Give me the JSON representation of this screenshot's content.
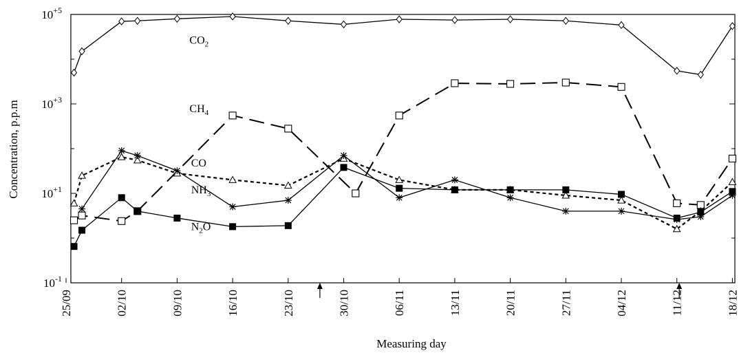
{
  "chart_data": {
    "type": "line",
    "title": "",
    "xlabel": "Measuring day",
    "ylabel": "Concentration, p.p.m",
    "yscale": "log",
    "ylim": [
      0.1,
      100000
    ],
    "ytick_labels": [
      {
        "value": 0.1,
        "base": "10",
        "exp": "-1"
      },
      {
        "value": 10,
        "base": "10",
        "exp": "+1"
      },
      {
        "value": 1000,
        "base": "10",
        "exp": "+3"
      },
      {
        "value": 100000,
        "base": "10",
        "exp": "+5"
      }
    ],
    "xtick_labels": [
      "25/09",
      "02/10",
      "09/10",
      "16/10",
      "23/10",
      "30/10",
      "06/11",
      "13/11",
      "20/11",
      "27/11",
      "04/12",
      "11/12",
      "18/12"
    ],
    "xticks_day": [
      0,
      7,
      14,
      21,
      28,
      35,
      42,
      49,
      56,
      63,
      70,
      77,
      84
    ],
    "arrows_day": [
      32,
      77.3
    ],
    "grid": false,
    "legend": "inline labels",
    "series_labels": [
      {
        "series": 0,
        "base": "CO",
        "sub": "2",
        "day": 14,
        "value": 22000
      },
      {
        "series": 1,
        "base": "CH",
        "sub": "4",
        "day": 14,
        "value": 650
      },
      {
        "series": 2,
        "base": "CO",
        "sub": "",
        "day": 14.2,
        "value": 40
      },
      {
        "series": 3,
        "base": "NH",
        "sub": "3",
        "day": 14.2,
        "value": 10
      },
      {
        "series": 4,
        "base": "N",
        "sub": "2",
        "suffix": "O",
        "day": 14.2,
        "value": 1.5
      }
    ],
    "series": [
      {
        "marker": "diamond",
        "dash": "solid",
        "day": [
          1,
          2,
          7,
          9,
          14,
          21,
          28,
          35,
          42,
          49,
          56,
          63,
          70,
          77,
          80,
          84
        ],
        "values": [
          5000,
          15000,
          70000,
          72000,
          80000,
          90000,
          72000,
          60000,
          78000,
          75000,
          78000,
          72000,
          58000,
          5500,
          4500,
          55000
        ]
      },
      {
        "marker": "square-open",
        "dash": "longdash",
        "day": [
          1,
          2,
          7,
          9,
          21,
          28,
          36.5,
          42,
          49,
          56,
          63,
          70,
          77,
          80,
          84
        ],
        "values": [
          2.5,
          3.2,
          2.4,
          4,
          550,
          280,
          10,
          550,
          2900,
          2800,
          3000,
          2400,
          6,
          5.5,
          60
        ]
      },
      {
        "marker": "triangle",
        "dash": "dotted",
        "day": [
          1,
          2,
          7,
          9,
          14,
          21,
          28,
          35,
          42,
          49,
          56,
          63,
          70,
          77,
          80,
          84
        ],
        "values": [
          6,
          25,
          65,
          55,
          28,
          20,
          15,
          60,
          20,
          12,
          12,
          9,
          7,
          1.6,
          4,
          18
        ]
      },
      {
        "marker": "asterisk",
        "dash": "solid",
        "day": [
          2,
          7,
          9,
          14,
          21,
          28,
          35,
          42,
          49,
          56,
          63,
          70,
          77,
          80,
          84
        ],
        "values": [
          4.5,
          90,
          70,
          32,
          5,
          7,
          70,
          8,
          20,
          8,
          4,
          4,
          2.6,
          3,
          9
        ]
      },
      {
        "marker": "square-filled",
        "dash": "solid",
        "day": [
          1,
          2,
          7,
          9,
          14,
          21,
          28,
          35,
          42,
          49,
          56,
          63,
          70,
          77,
          80,
          84
        ],
        "values": [
          0.65,
          1.5,
          8,
          4,
          2.8,
          1.8,
          1.9,
          38,
          13,
          12,
          12,
          12,
          9.5,
          2.8,
          3.8,
          11
        ]
      }
    ]
  }
}
